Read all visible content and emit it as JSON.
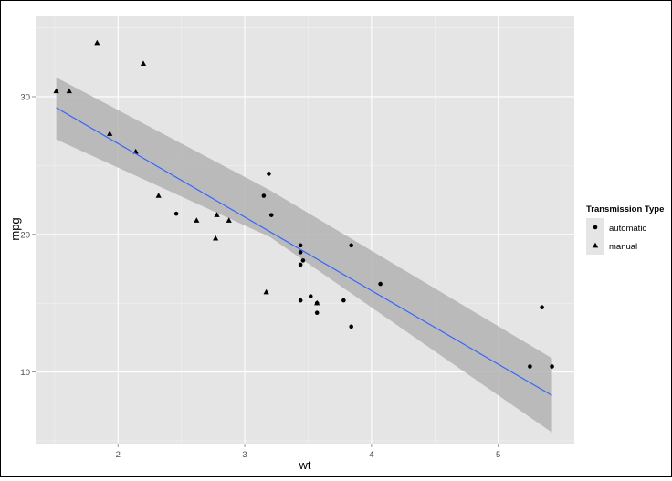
{
  "chart_data": {
    "type": "scatter",
    "xlabel": "wt",
    "ylabel": "mpg",
    "xlim": [
      1.35,
      5.6
    ],
    "ylim": [
      4.8,
      35.9
    ],
    "x_ticks": [
      2,
      3,
      4,
      5
    ],
    "y_ticks": [
      10,
      20,
      30
    ],
    "x_tick_labels": [
      "2",
      "3",
      "4",
      "5"
    ],
    "y_tick_labels": [
      "10",
      "20",
      "30"
    ],
    "grid": true,
    "legend": {
      "title": "Transmission Type",
      "placement": "right"
    },
    "series": [
      {
        "name": "automatic",
        "marker": "circle",
        "points": [
          [
            2.46,
            21.5
          ],
          [
            3.15,
            22.8
          ],
          [
            3.19,
            24.4
          ],
          [
            3.21,
            21.4
          ],
          [
            3.44,
            19.2
          ],
          [
            3.44,
            18.7
          ],
          [
            3.44,
            17.8
          ],
          [
            3.46,
            18.1
          ],
          [
            3.52,
            15.5
          ],
          [
            3.44,
            15.2
          ],
          [
            3.57,
            15.0
          ],
          [
            3.57,
            14.3
          ],
          [
            3.78,
            15.2
          ],
          [
            3.84,
            19.2
          ],
          [
            3.84,
            13.3
          ],
          [
            4.07,
            16.4
          ],
          [
            5.25,
            10.4
          ],
          [
            5.345,
            14.7
          ],
          [
            5.424,
            10.4
          ]
        ]
      },
      {
        "name": "manual",
        "marker": "triangle",
        "points": [
          [
            1.513,
            30.4
          ],
          [
            1.615,
            30.4
          ],
          [
            1.835,
            33.9
          ],
          [
            1.935,
            27.3
          ],
          [
            2.14,
            26.0
          ],
          [
            2.2,
            32.4
          ],
          [
            2.32,
            22.8
          ],
          [
            2.62,
            21.0
          ],
          [
            2.77,
            19.7
          ],
          [
            2.78,
            21.4
          ],
          [
            2.875,
            21.0
          ],
          [
            3.17,
            15.8
          ],
          [
            3.57,
            15.0
          ]
        ]
      }
    ],
    "fit": {
      "method": "linear",
      "color": "#3366ff",
      "line": [
        [
          1.513,
          29.2
        ],
        [
          5.424,
          8.3
        ]
      ],
      "band_upper": [
        [
          1.513,
          31.4
        ],
        [
          3.2,
          23.2
        ],
        [
          5.424,
          11.0
        ]
      ],
      "band_lower": [
        [
          1.513,
          26.9
        ],
        [
          3.2,
          19.8
        ],
        [
          5.424,
          5.6
        ]
      ]
    },
    "colors": {
      "panel": "#e5e5e5",
      "band": "#b3b3b3",
      "points": "#000000",
      "grid": "#ffffff"
    }
  }
}
